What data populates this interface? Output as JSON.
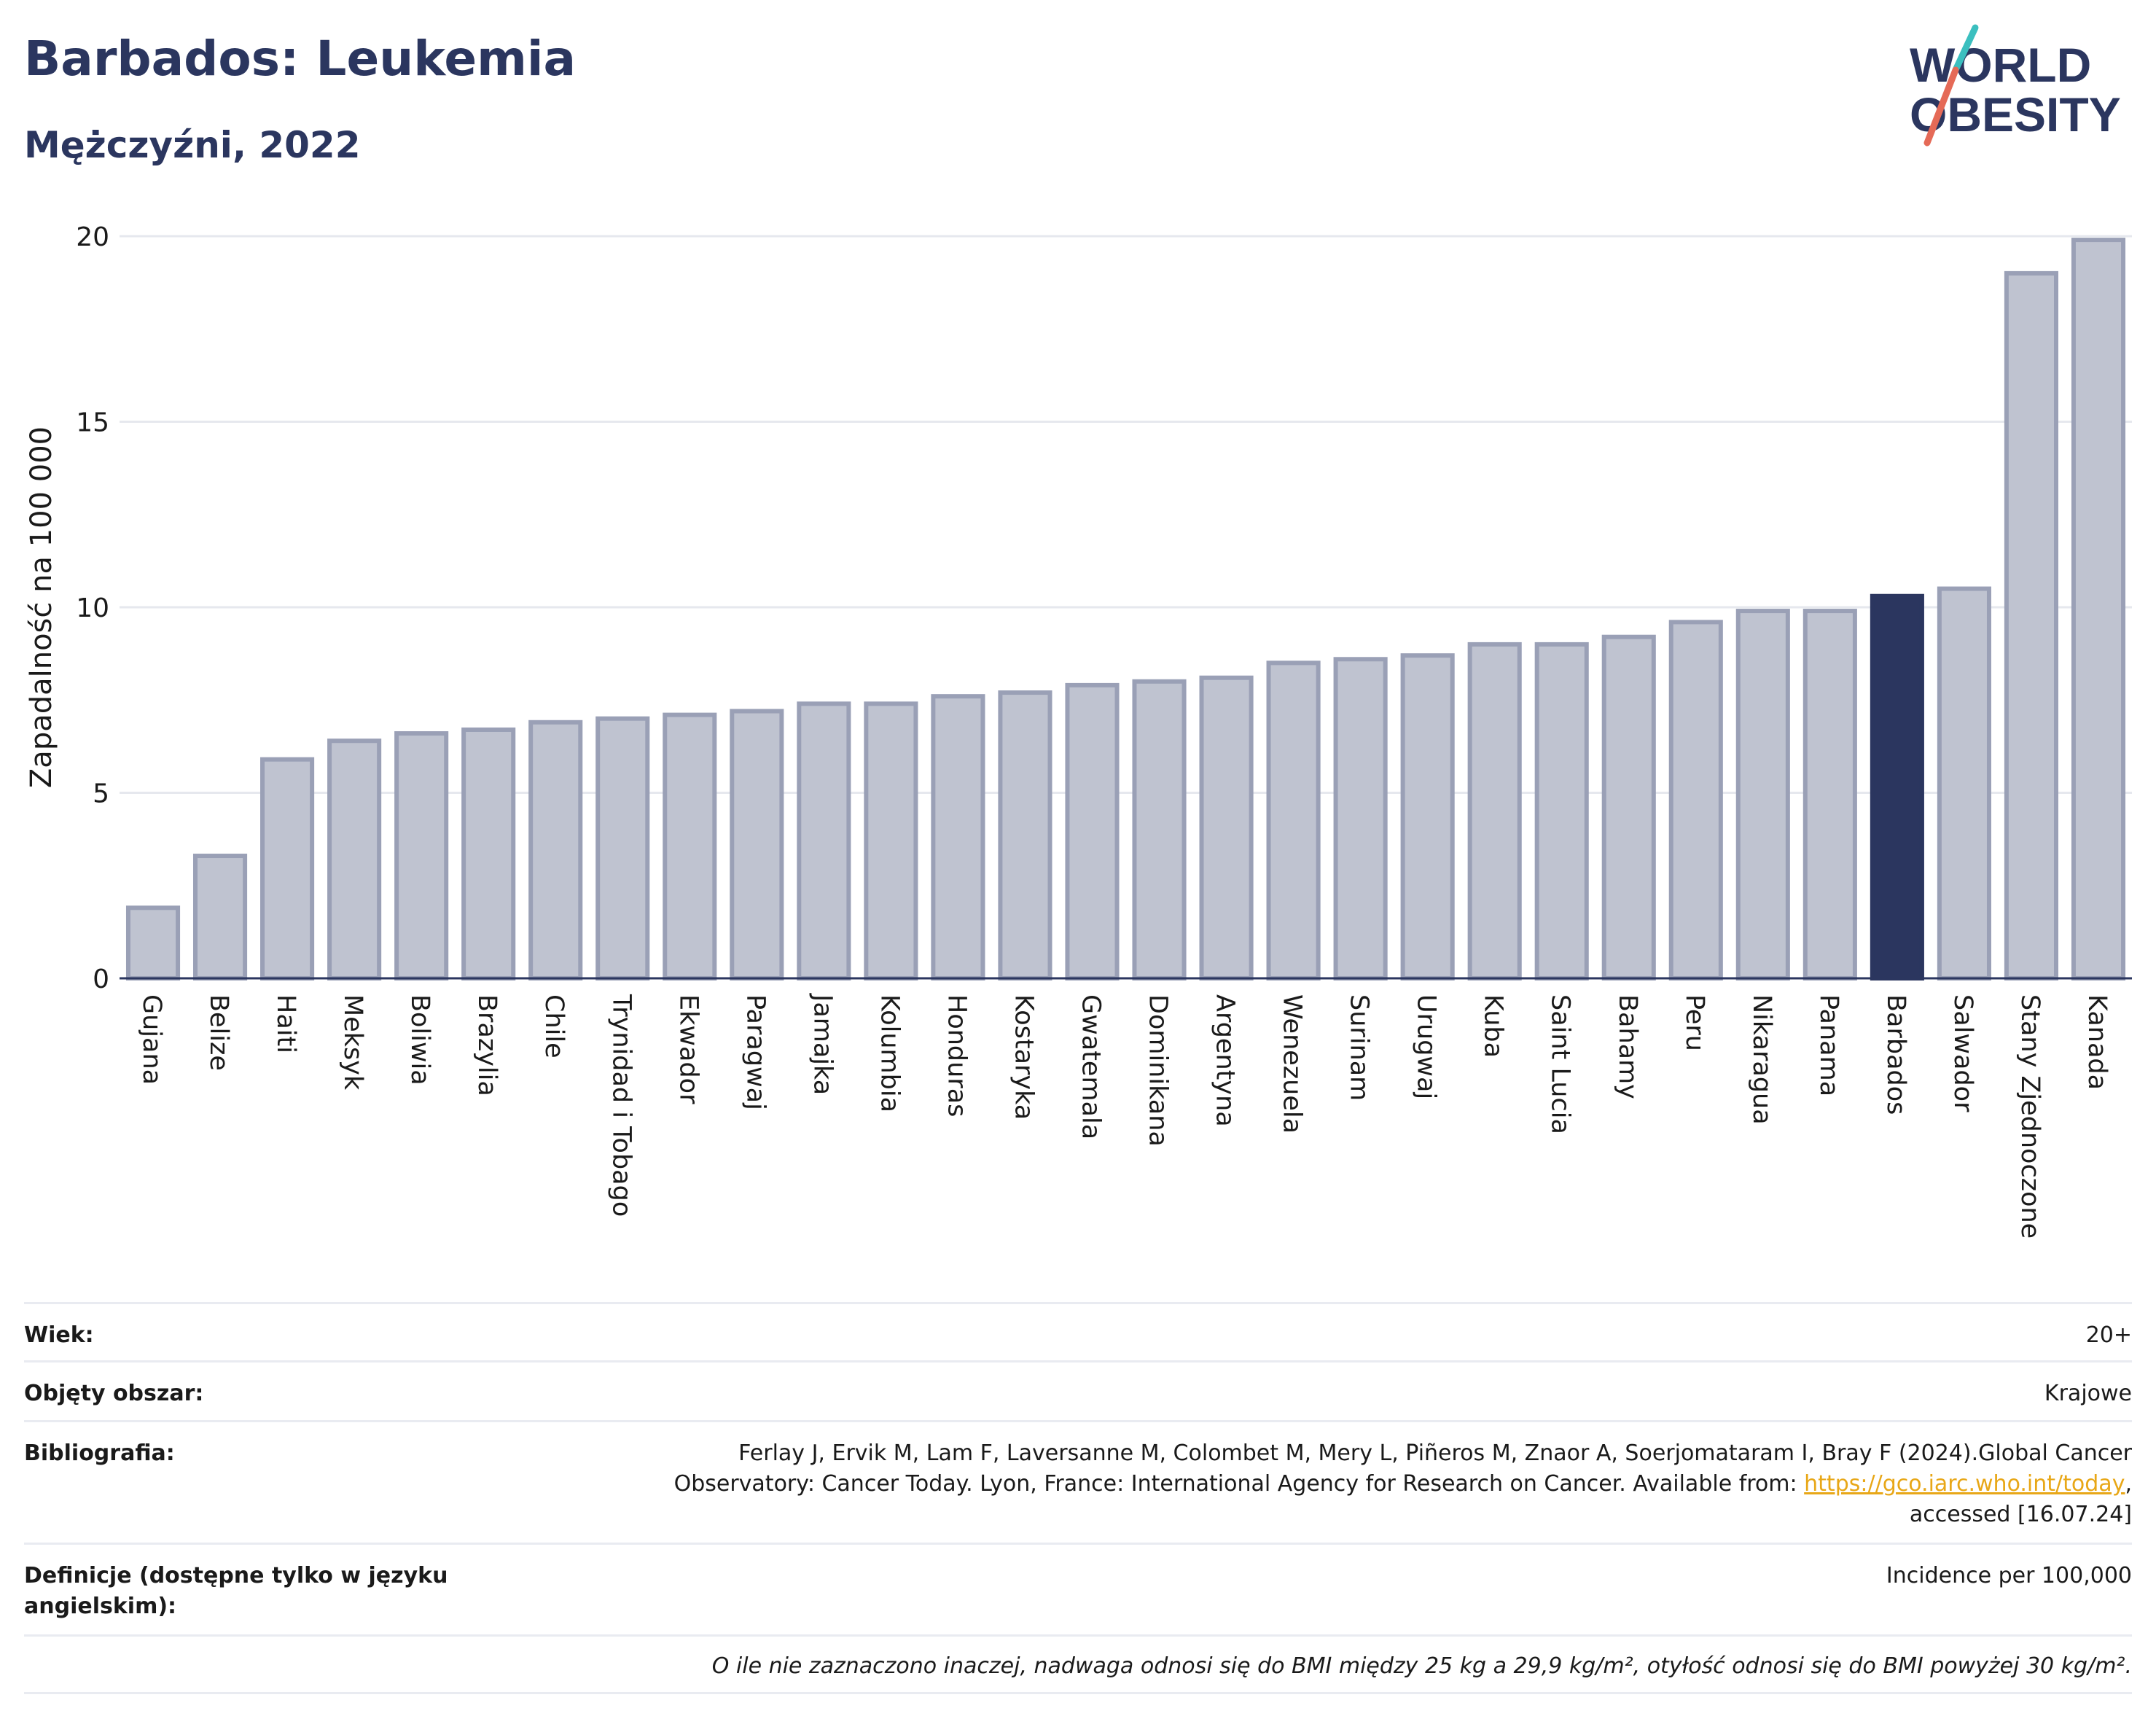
{
  "header": {
    "title": "Barbados: Leukemia",
    "subtitle": "Mężczyźni, 2022"
  },
  "logo": {
    "line1": "WORLD",
    "line2": "OBESITY",
    "accent_colors": [
      "#3bbfbf",
      "#e56a57"
    ]
  },
  "colors": {
    "bar": "#bfc3d0",
    "bar_stroke": "#9aa0b6",
    "highlight": "#2b365f",
    "grid": "#e6e8ee",
    "axis": "#2b365f",
    "link": "#e8a717"
  },
  "chart_data": {
    "type": "bar",
    "title": "Barbados: Leukemia",
    "subtitle": "Mężczyźni, 2022",
    "xlabel": "",
    "ylabel": "Zapadalność na 100 000",
    "ylim": [
      0,
      20
    ],
    "yticks": [
      0,
      5,
      10,
      15,
      20
    ],
    "grid": true,
    "highlight": "Barbados",
    "categories": [
      "Gujana",
      "Belize",
      "Haiti",
      "Meksyk",
      "Boliwia",
      "Brazylia",
      "Chile",
      "Trynidad i Tobago",
      "Ekwador",
      "Paragwaj",
      "Jamajka",
      "Kolumbia",
      "Honduras",
      "Kostaryka",
      "Gwatemala",
      "Dominikana",
      "Argentyna",
      "Wenezuela",
      "Surinam",
      "Urugwaj",
      "Kuba",
      "Saint Lucia",
      "Bahamy",
      "Peru",
      "Nikaragua",
      "Panama",
      "Barbados",
      "Salwador",
      "Stany Zjednoczone",
      "Kanada"
    ],
    "values": [
      1.9,
      3.3,
      5.9,
      6.4,
      6.6,
      6.7,
      6.9,
      7.0,
      7.1,
      7.2,
      7.4,
      7.4,
      7.6,
      7.7,
      7.9,
      8.0,
      8.1,
      8.5,
      8.6,
      8.7,
      9.0,
      9.0,
      9.2,
      9.6,
      9.9,
      9.9,
      10.3,
      10.5,
      19.0,
      19.9
    ]
  },
  "info": {
    "age_label": "Wiek:",
    "age_value": "20+",
    "coverage_label": "Objęty obszar:",
    "coverage_value": "Krajowe",
    "bib_label": "Bibliografia:",
    "bib_line1": "Ferlay J, Ervik M, Lam F, Laversanne M, Colombet M, Mery L, Piñeros M, Znaor A, Soerjomataram I, Bray F (2024).Global Cancer",
    "bib_line2_pre": "Observatory: Cancer Today. Lyon, France: International Agency for Research on Cancer. Available from: ",
    "bib_link": "https://gco.iarc.who.int/today",
    "bib_line2_post": ",",
    "bib_line3": "accessed [16.07.24]",
    "def_label": "Definicje (dostępne tylko w języku angielskim):",
    "def_value": "Incidence per 100,000",
    "note": "O ile nie zaznaczono inaczej, nadwaga odnosi się do BMI między 25 kg a 29,9 kg/m², otyłość odnosi się do BMI powyżej 30 kg/m²."
  }
}
